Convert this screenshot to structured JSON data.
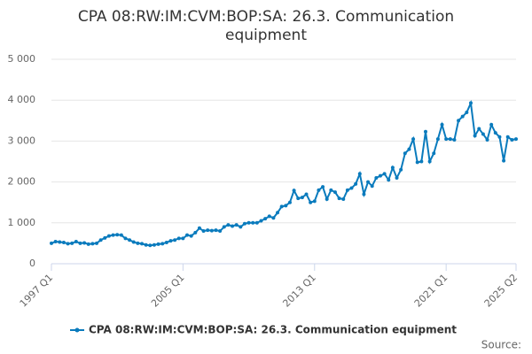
{
  "chart_data": {
    "type": "line",
    "title": "CPA 08:RW:IM:CVM:BOP:SA: 26.3. Communication equipment",
    "source": "Source:",
    "categories": [
      "1997 Q1",
      null,
      null,
      null,
      null,
      null,
      null,
      null,
      null,
      null,
      null,
      null,
      null,
      null,
      null,
      null,
      null,
      null,
      null,
      null,
      null,
      null,
      null,
      null,
      null,
      null,
      null,
      null,
      null,
      null,
      null,
      null,
      "2005 Q1",
      null,
      null,
      null,
      null,
      null,
      null,
      null,
      null,
      null,
      null,
      null,
      null,
      null,
      null,
      null,
      null,
      null,
      null,
      null,
      null,
      null,
      null,
      null,
      null,
      null,
      null,
      null,
      null,
      null,
      null,
      null,
      "2013 Q1",
      null,
      null,
      null,
      null,
      null,
      null,
      null,
      null,
      null,
      null,
      null,
      null,
      null,
      null,
      null,
      null,
      null,
      null,
      null,
      null,
      null,
      null,
      null,
      null,
      null,
      null,
      null,
      null,
      null,
      null,
      null,
      "2021 Q1",
      null,
      null,
      null,
      null,
      null,
      null,
      null,
      null,
      null,
      null,
      null,
      null,
      null,
      null,
      null,
      null,
      "2025 Q2"
    ],
    "series": [
      {
        "name": "CPA 08:RW:IM:CVM:BOP:SA: 26.3. Communication equipment",
        "color": "#0a7bbd",
        "values": [
          500,
          540,
          530,
          520,
          490,
          500,
          540,
          500,
          510,
          480,
          490,
          500,
          580,
          630,
          680,
          700,
          710,
          700,
          620,
          580,
          530,
          500,
          490,
          460,
          450,
          460,
          480,
          490,
          520,
          560,
          580,
          620,
          620,
          700,
          680,
          760,
          870,
          800,
          820,
          810,
          820,
          800,
          900,
          950,
          920,
          950,
          900,
          980,
          1000,
          1000,
          1000,
          1050,
          1100,
          1160,
          1120,
          1250,
          1400,
          1420,
          1500,
          1790,
          1600,
          1620,
          1700,
          1500,
          1530,
          1800,
          1880,
          1580,
          1800,
          1750,
          1600,
          1580,
          1800,
          1850,
          1950,
          2200,
          1700,
          2000,
          1900,
          2100,
          2150,
          2200,
          2050,
          2350,
          2100,
          2300,
          2700,
          2800,
          3050,
          2480,
          2500,
          3230,
          2500,
          2700,
          3050,
          3400,
          3050,
          3050,
          3030,
          3500,
          3600,
          3700,
          3930,
          3130,
          3300,
          3170,
          3030,
          3400,
          3200,
          3100,
          2520,
          3100,
          3030,
          3050
        ]
      }
    ],
    "ylim": [
      0,
      5000
    ],
    "yticks": [
      0,
      {
        "value": 1000,
        "label": "1 000"
      },
      {
        "value": 2000,
        "label": "2 000"
      },
      {
        "value": 3000,
        "label": "3 000"
      },
      {
        "value": 4000,
        "label": "4 000"
      },
      {
        "value": 5000,
        "label": "5 000"
      }
    ],
    "grid": true,
    "legend": "bottom"
  }
}
